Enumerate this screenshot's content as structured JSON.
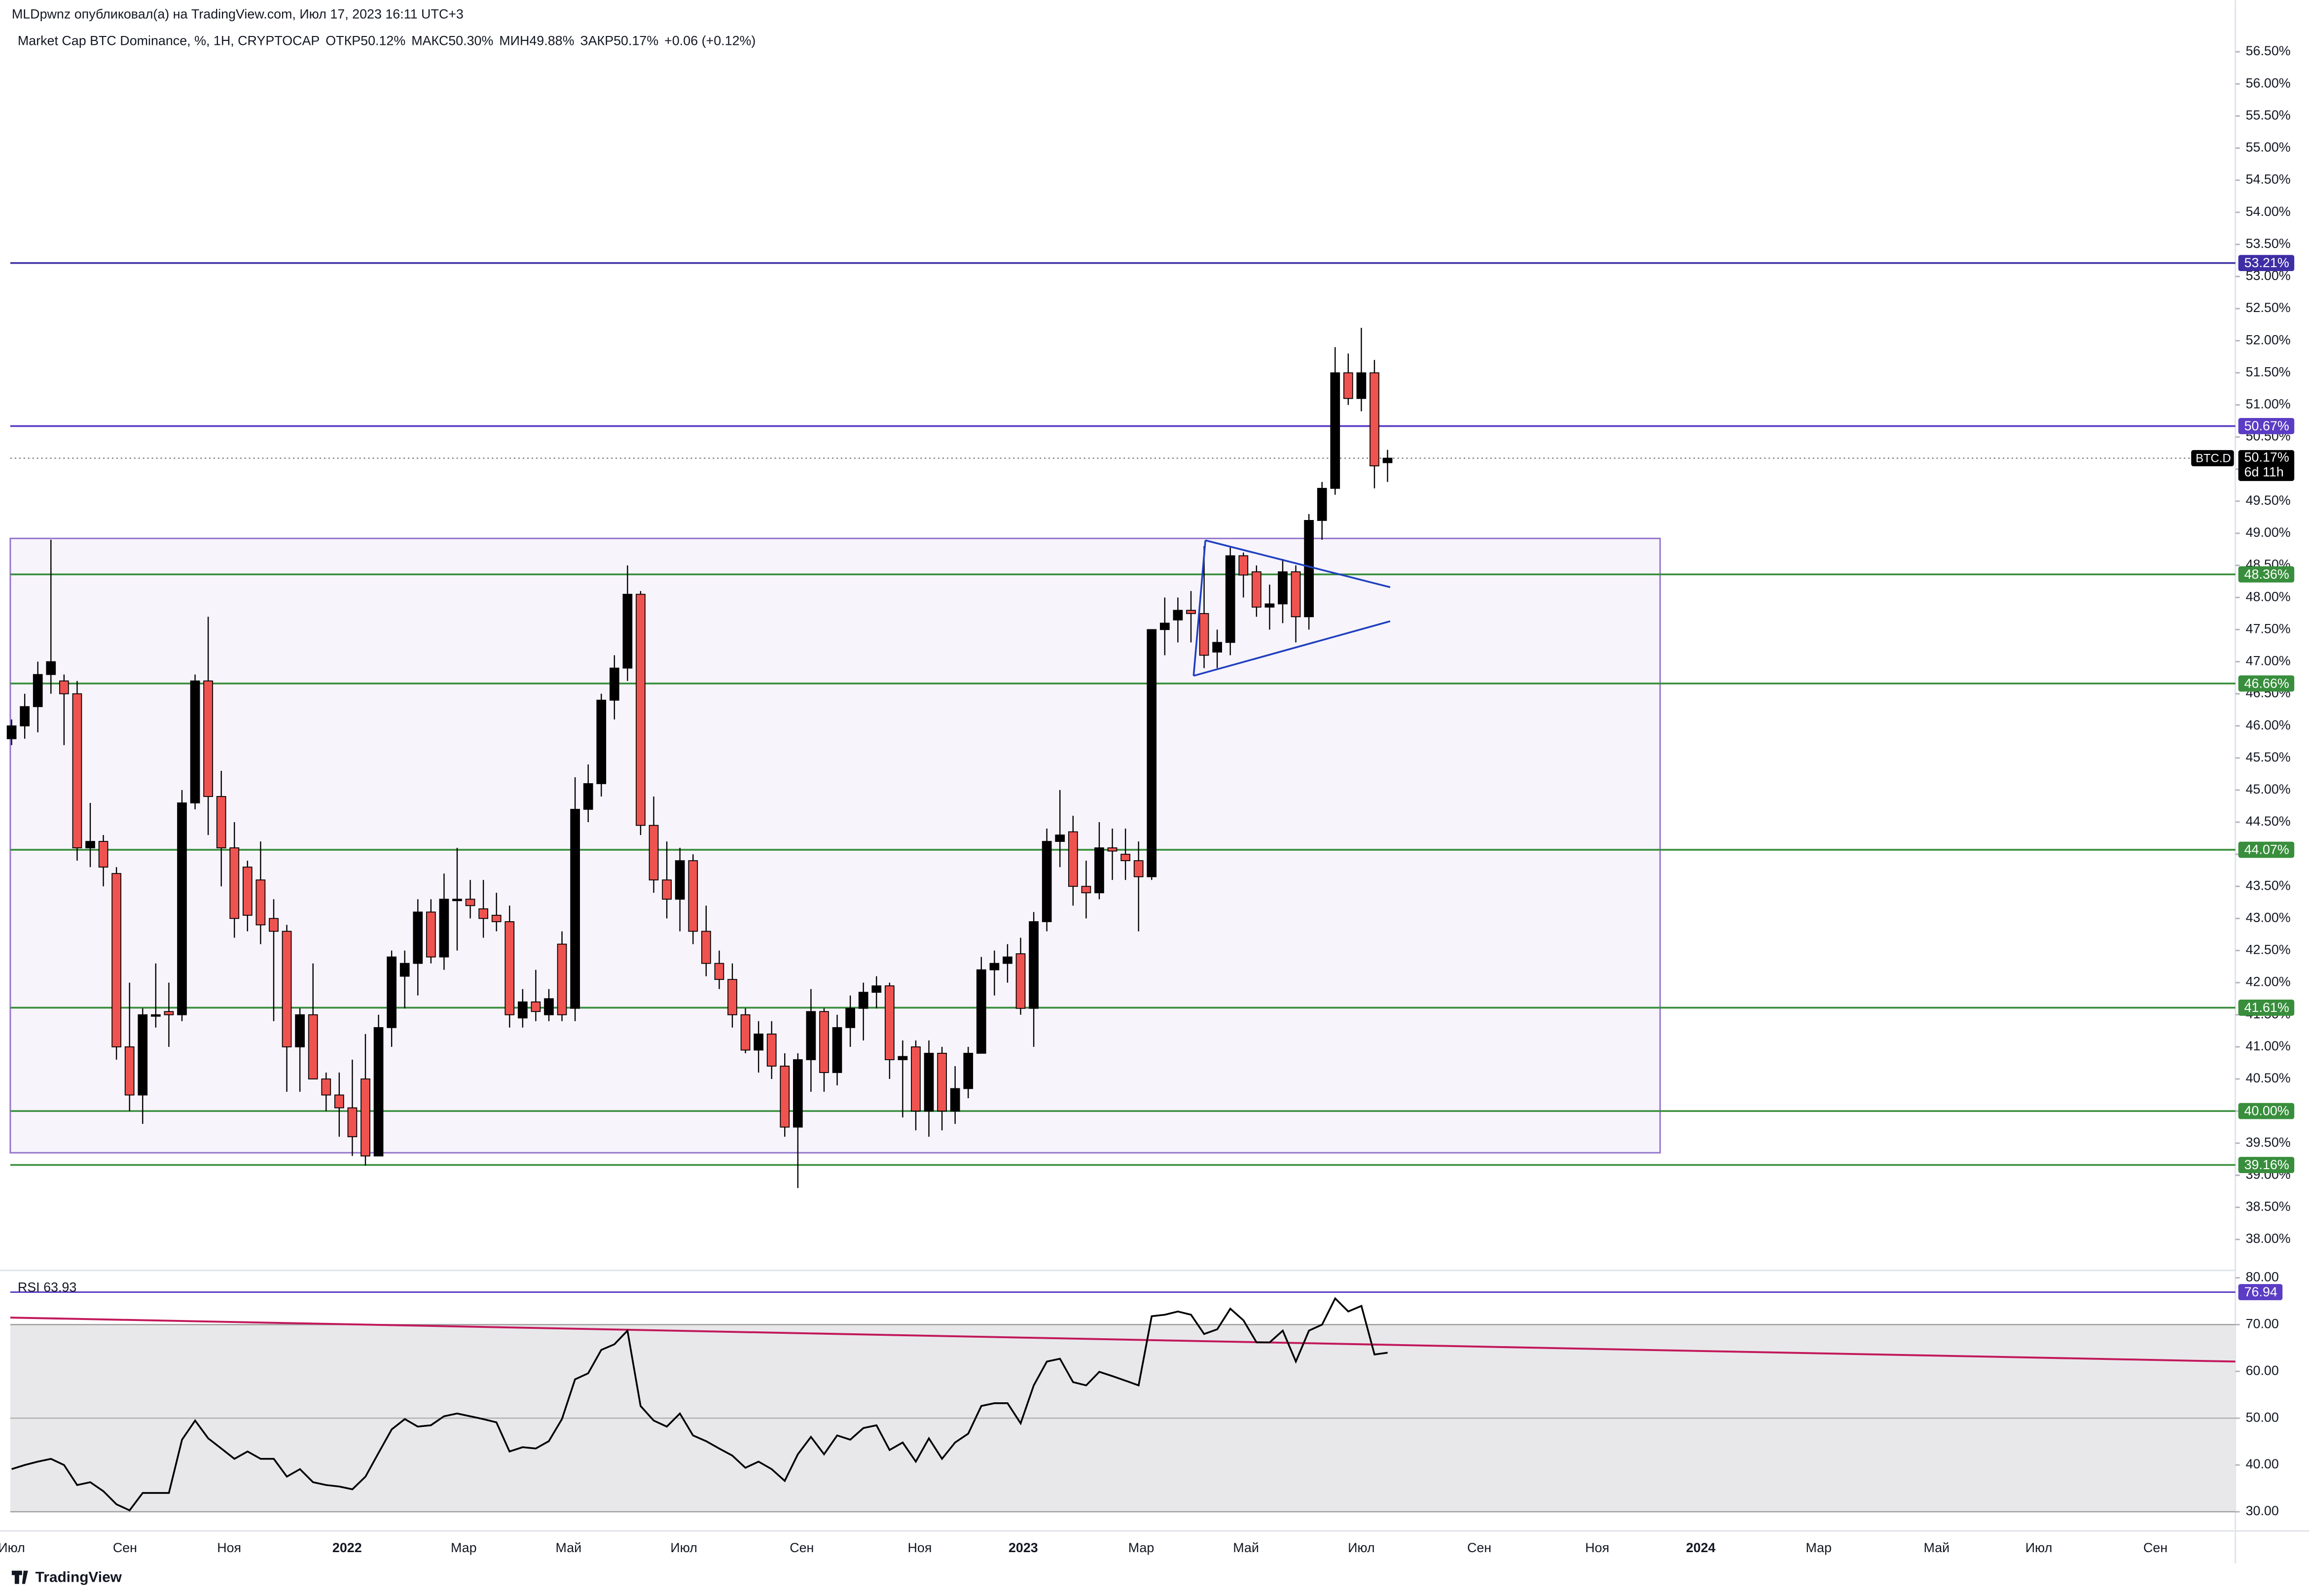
{
  "header": {
    "published": "MLDpwnz опубликовал(а) на TradingView.com, Июл 17, 2023 16:11 UTC+3",
    "symbol": "Market Cap BTC Dominance, %, 1H, CRYPTOCAP",
    "ohlc": [
      {
        "label": "ОТКР",
        "value": "50.12%"
      },
      {
        "label": "МАКС",
        "value": "50.30%"
      },
      {
        "label": "МИН",
        "value": "49.88%"
      },
      {
        "label": "ЗАКР",
        "value": "50.17%"
      }
    ],
    "change": "+0.06 (+0.12%)"
  },
  "chart_data": [
    {
      "type": "candlestick",
      "open": [
        45.8,
        46.0,
        46.3,
        46.8,
        46.7,
        46.5,
        44.1,
        44.2,
        43.7,
        41.0,
        40.25,
        41.5,
        41.55,
        41.5,
        44.8,
        46.7,
        44.9,
        44.1,
        43.8,
        43.6,
        43.0,
        42.8,
        41.0,
        41.5,
        40.5,
        40.25,
        40.05,
        40.5,
        39.3,
        41.3,
        42.1,
        42.3,
        43.1,
        42.4,
        43.3,
        43.3,
        43.15,
        43.05,
        42.95,
        41.45,
        41.7,
        41.5,
        42.6,
        41.6,
        44.7,
        45.1,
        46.4,
        46.9,
        48.05,
        44.45,
        43.6,
        43.3,
        43.9,
        42.8,
        42.3,
        42.05,
        41.5,
        40.95,
        41.2,
        40.7,
        39.75,
        40.8,
        41.55,
        40.6,
        41.3,
        41.6,
        41.85,
        41.95,
        40.8,
        41.0,
        40.0,
        40.9,
        40.0,
        40.35,
        40.9,
        42.2,
        42.3,
        42.45,
        41.6,
        42.95,
        44.2,
        44.35,
        43.5,
        43.4,
        44.1,
        44.0,
        43.9,
        43.65,
        47.5,
        47.65,
        47.8,
        47.75,
        47.15,
        47.3,
        48.65,
        48.4,
        47.85,
        47.9,
        48.4,
        47.7,
        49.2,
        49.7,
        51.5,
        51.1,
        51.5,
        50.1
      ],
      "high": [
        46.1,
        46.5,
        47.0,
        48.9,
        46.8,
        46.7,
        44.8,
        44.3,
        43.8,
        42.0,
        41.6,
        42.3,
        42.0,
        45.0,
        46.8,
        47.7,
        45.3,
        44.5,
        43.9,
        44.2,
        43.3,
        42.9,
        41.6,
        42.3,
        40.6,
        40.6,
        40.8,
        41.2,
        41.5,
        42.5,
        42.5,
        43.3,
        43.3,
        43.7,
        44.1,
        43.6,
        43.6,
        43.4,
        43.2,
        41.9,
        42.2,
        41.9,
        42.8,
        45.2,
        45.4,
        46.5,
        47.1,
        48.5,
        48.1,
        44.9,
        44.2,
        44.1,
        44.0,
        43.2,
        42.5,
        42.3,
        41.6,
        41.4,
        41.4,
        40.9,
        40.9,
        41.9,
        41.6,
        41.5,
        41.8,
        42.0,
        42.1,
        42.0,
        41.1,
        41.1,
        41.1,
        41.0,
        40.7,
        41.0,
        42.4,
        42.5,
        42.6,
        42.7,
        43.1,
        44.4,
        45.0,
        44.6,
        43.9,
        44.5,
        44.4,
        44.4,
        44.2,
        47.5,
        48.0,
        48.0,
        48.1,
        48.8,
        47.5,
        48.8,
        48.7,
        48.5,
        48.2,
        48.6,
        48.5,
        49.3,
        49.8,
        51.9,
        51.8,
        52.2,
        51.7,
        50.3
      ],
      "low": [
        45.7,
        45.8,
        45.9,
        46.5,
        45.7,
        43.9,
        43.8,
        43.5,
        40.8,
        40.0,
        39.8,
        41.3,
        41.0,
        41.4,
        44.7,
        44.3,
        43.5,
        42.7,
        42.8,
        42.6,
        41.4,
        40.3,
        40.3,
        40.6,
        40.0,
        39.6,
        39.3,
        39.15,
        39.3,
        41.0,
        41.6,
        41.8,
        42.3,
        42.2,
        42.5,
        43.0,
        42.7,
        42.8,
        41.3,
        41.3,
        41.4,
        41.4,
        41.4,
        41.4,
        44.5,
        44.9,
        46.1,
        46.7,
        44.3,
        43.4,
        43.0,
        42.8,
        42.6,
        42.1,
        41.9,
        41.3,
        40.9,
        40.6,
        40.5,
        39.6,
        38.8,
        40.3,
        40.3,
        40.4,
        41.0,
        41.1,
        41.6,
        40.5,
        39.9,
        39.7,
        39.6,
        39.7,
        39.8,
        40.2,
        40.9,
        41.8,
        42.0,
        41.5,
        41.0,
        42.8,
        43.8,
        43.2,
        43.0,
        43.3,
        43.6,
        43.6,
        42.8,
        43.6,
        47.1,
        47.3,
        47.3,
        46.9,
        46.9,
        47.1,
        48.0,
        47.7,
        47.5,
        47.6,
        47.3,
        47.5,
        48.9,
        49.6,
        51.0,
        50.9,
        49.7,
        49.8
      ],
      "close": [
        46.0,
        46.3,
        46.8,
        47.0,
        46.5,
        44.1,
        44.2,
        43.8,
        41.0,
        40.25,
        41.5,
        41.5,
        41.5,
        44.8,
        46.7,
        44.9,
        44.1,
        43.0,
        43.05,
        42.9,
        42.8,
        41.0,
        41.5,
        40.5,
        40.25,
        40.05,
        39.6,
        39.3,
        41.3,
        42.4,
        42.3,
        43.1,
        42.4,
        43.3,
        43.3,
        43.2,
        43.0,
        42.95,
        41.5,
        41.7,
        41.55,
        41.75,
        41.5,
        44.7,
        45.1,
        46.4,
        46.9,
        48.05,
        44.45,
        43.6,
        43.3,
        43.9,
        42.8,
        42.3,
        42.05,
        41.5,
        40.95,
        41.2,
        40.7,
        39.75,
        40.8,
        41.55,
        40.6,
        41.3,
        41.6,
        41.85,
        41.95,
        40.8,
        40.85,
        40.0,
        40.9,
        40.0,
        40.35,
        40.9,
        42.2,
        42.3,
        42.4,
        41.6,
        42.95,
        44.2,
        44.3,
        43.5,
        43.4,
        44.1,
        44.05,
        43.9,
        43.65,
        47.5,
        47.6,
        47.8,
        47.75,
        47.1,
        47.3,
        48.65,
        48.35,
        47.85,
        47.9,
        48.4,
        47.7,
        49.2,
        49.7,
        51.5,
        51.1,
        51.5,
        50.05,
        50.17
      ],
      "up_color": "#000000",
      "down_color": "#ef5350",
      "xlim": [
        -0.1,
        169.7
      ],
      "xticks": [
        {
          "value": 0,
          "label": "Июл"
        },
        {
          "value": 8.65,
          "label": "Сен"
        },
        {
          "value": 16.6,
          "label": "Ноя"
        },
        {
          "value": 25.6,
          "label": "2022"
        },
        {
          "value": 34.5,
          "label": "Мар"
        },
        {
          "value": 42.5,
          "label": "Май"
        },
        {
          "value": 51.3,
          "label": "Июл"
        },
        {
          "value": 60.3,
          "label": "Сен"
        },
        {
          "value": 69.3,
          "label": "Ноя"
        },
        {
          "value": 77.2,
          "label": "2023"
        },
        {
          "value": 86.2,
          "label": "Мар"
        },
        {
          "value": 94.2,
          "label": "Май"
        },
        {
          "value": 103.0,
          "label": "Июл"
        },
        {
          "value": 112.0,
          "label": "Сен"
        },
        {
          "value": 121.0,
          "label": "Ноя"
        },
        {
          "value": 128.9,
          "label": "2024"
        },
        {
          "value": 137.9,
          "label": "Мар"
        },
        {
          "value": 146.9,
          "label": "Май"
        },
        {
          "value": 154.7,
          "label": "Июл"
        },
        {
          "value": 163.6,
          "label": "Сен"
        }
      ],
      "ylim": [
        37.54,
        56.89
      ],
      "yticks": [
        {
          "value": 38,
          "label": "38.00%"
        },
        {
          "value": 38.5,
          "label": "38.50%"
        },
        {
          "value": 39,
          "label": "39.00%"
        },
        {
          "value": 39.5,
          "label": "39.50%"
        },
        {
          "value": 40,
          "label": "40.00%"
        },
        {
          "value": 40.5,
          "label": "40.50%"
        },
        {
          "value": 41,
          "label": "41.00%"
        },
        {
          "value": 41.5,
          "label": "41.50%"
        },
        {
          "value": 42,
          "label": "42.00%"
        },
        {
          "value": 42.5,
          "label": "42.50%"
        },
        {
          "value": 43,
          "label": "43.00%"
        },
        {
          "value": 43.5,
          "label": "43.50%"
        },
        {
          "value": 44,
          "label": "44.00%"
        },
        {
          "value": 44.5,
          "label": "44.50%"
        },
        {
          "value": 45,
          "label": "45.00%"
        },
        {
          "value": 45.5,
          "label": "45.50%"
        },
        {
          "value": 46,
          "label": "46.00%"
        },
        {
          "value": 46.5,
          "label": "46.50%"
        },
        {
          "value": 47,
          "label": "47.00%"
        },
        {
          "value": 47.5,
          "label": "47.50%"
        },
        {
          "value": 48,
          "label": "48.00%"
        },
        {
          "value": 48.5,
          "label": "48.50%"
        },
        {
          "value": 49,
          "label": "49.00%"
        },
        {
          "value": 49.5,
          "label": "49.50%"
        },
        {
          "value": 50,
          "label": "50.00%"
        },
        {
          "value": 50.5,
          "label": "50.50%"
        },
        {
          "value": 51,
          "label": "51.00%"
        },
        {
          "value": 51.5,
          "label": "51.50%"
        },
        {
          "value": 52,
          "label": "52.00%"
        },
        {
          "value": 52.5,
          "label": "52.50%"
        },
        {
          "value": 53,
          "label": "53.00%"
        },
        {
          "value": 53.5,
          "label": "53.50%"
        },
        {
          "value": 54,
          "label": "54.00%"
        },
        {
          "value": 54.5,
          "label": "54.50%"
        },
        {
          "value": 55,
          "label": "55.00%"
        },
        {
          "value": 55.5,
          "label": "55.50%"
        },
        {
          "value": 56,
          "label": "56.00%"
        },
        {
          "value": 56.5,
          "label": "56.50%"
        }
      ],
      "levels": [
        {
          "value": 53.21,
          "label": "53.21%",
          "color": "#3d2ea5"
        },
        {
          "value": 50.67,
          "label": "50.67%",
          "color": "#5b3cc4"
        },
        {
          "value": 48.36,
          "label": "48.36%",
          "color": "#388e3c"
        },
        {
          "value": 46.66,
          "label": "46.66%",
          "color": "#388e3c"
        },
        {
          "value": 44.07,
          "label": "44.07%",
          "color": "#388e3c"
        },
        {
          "value": 41.61,
          "label": "41.61%",
          "color": "#388e3c"
        },
        {
          "value": 40.0,
          "label": "40.00%",
          "color": "#388e3c"
        },
        {
          "value": 39.16,
          "label": "39.16%",
          "color": "#388e3c"
        }
      ],
      "box": {
        "x": [
          -0.1,
          125.8
        ],
        "y": [
          39.35,
          48.92
        ],
        "color": "#9575cd"
      },
      "triangle": [
        {
          "x": [
            91.1,
            105.2
          ],
          "y": [
            48.89,
            48.16
          ]
        },
        {
          "x": [
            90.2,
            105.2
          ],
          "y": [
            46.78,
            47.63
          ]
        }
      ],
      "triangle_color": "#1e3fbf",
      "last": {
        "symbol": "BTC.D",
        "value": 50.17,
        "label": "50.17%",
        "countdown": "6d 11h"
      }
    },
    {
      "type": "line",
      "title": "RSI 63.93",
      "color": "#000000",
      "values": [
        39.1,
        40.0,
        40.7,
        41.3,
        40.0,
        35.7,
        36.3,
        34.4,
        31.6,
        30.3,
        34.0,
        34.0,
        34.0,
        45.4,
        49.5,
        45.7,
        43.5,
        41.3,
        42.9,
        41.3,
        41.3,
        37.5,
        39.1,
        36.3,
        35.7,
        35.4,
        34.8,
        37.5,
        42.6,
        47.6,
        49.8,
        48.2,
        48.5,
        50.4,
        51.0,
        50.4,
        49.8,
        49.1,
        42.9,
        43.8,
        43.5,
        45.1,
        49.8,
        58.3,
        59.6,
        64.6,
        65.8,
        68.7,
        52.6,
        49.5,
        48.2,
        51.0,
        46.3,
        45.1,
        43.5,
        42.0,
        39.4,
        40.7,
        39.1,
        36.6,
        42.3,
        46.0,
        42.3,
        46.3,
        45.4,
        47.9,
        48.5,
        43.2,
        44.8,
        40.7,
        45.7,
        41.3,
        44.8,
        46.7,
        52.6,
        53.2,
        53.2,
        48.9,
        57.0,
        62.1,
        62.7,
        57.7,
        57.0,
        59.9,
        59.0,
        58.0,
        57.0,
        71.8,
        72.1,
        72.8,
        72.1,
        68.0,
        69.0,
        73.4,
        70.9,
        66.2,
        66.2,
        68.7,
        62.1,
        68.7,
        70.0,
        75.6,
        72.8,
        74.0,
        63.6,
        64.0
      ],
      "ylim": [
        25.9,
        81.26
      ],
      "yticks": [
        {
          "value": 30,
          "label": "30.00"
        },
        {
          "value": 40,
          "label": "40.00"
        },
        {
          "value": 50,
          "label": "50.00"
        },
        {
          "value": 60,
          "label": "60.00"
        },
        {
          "value": 70,
          "label": "70.00"
        },
        {
          "value": 80,
          "label": "80.00"
        }
      ],
      "band": [
        30,
        70
      ],
      "midline": 50,
      "levels": [
        {
          "value": 76.94,
          "label": "76.94",
          "color": "#5b3cc4"
        }
      ],
      "trendline": {
        "x": [
          -0.1,
          169.7
        ],
        "y": [
          71.5,
          62.1
        ],
        "color": "#c2185b"
      }
    }
  ],
  "footer": {
    "logo": "TradingView"
  }
}
